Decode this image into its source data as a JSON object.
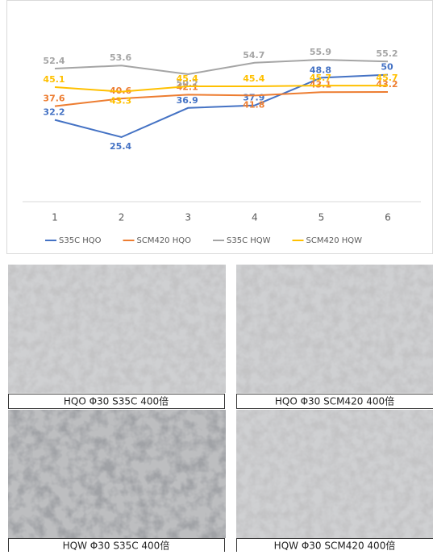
{
  "chart_data": {
    "type": "line",
    "categories": [
      "1",
      "2",
      "3",
      "4",
      "5",
      "6"
    ],
    "series": [
      {
        "name": "S35C HQO",
        "color": "#4472c4",
        "values": [
          32.2,
          25.4,
          36.9,
          37.9,
          48.8,
          50
        ]
      },
      {
        "name": "SCM420 HQO",
        "color": "#ed7d31",
        "values": [
          37.6,
          40.6,
          42.1,
          41.8,
          43.1,
          43.2
        ]
      },
      {
        "name": "S35C HQW",
        "color": "#a5a5a5",
        "values": [
          52.4,
          53.6,
          50.2,
          54.7,
          55.9,
          55.2
        ]
      },
      {
        "name": "SCM420 HQW",
        "color": "#ffc000",
        "values": [
          45.1,
          43.3,
          45.4,
          45.4,
          45.7,
          45.7
        ]
      }
    ],
    "legend": "bottom",
    "data_labels": true
  },
  "images": [
    {
      "caption": "HQO Φ30 S35C 400倍"
    },
    {
      "caption": "HQO Φ30 SCM420 400倍"
    },
    {
      "caption": "HQW Φ30 S35C 400倍"
    },
    {
      "caption": "HQW Φ30 SCM420 400倍"
    }
  ]
}
